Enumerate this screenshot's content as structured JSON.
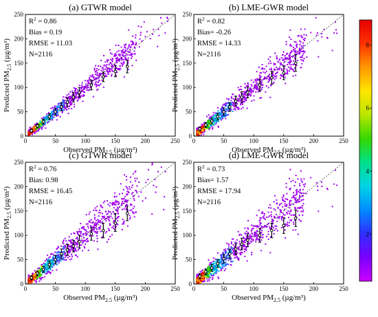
{
  "chart_data": [
    {
      "type": "scatter",
      "title": "(a) GTWR model",
      "xlabel": "Observed PM2.5 (µg/m³)",
      "ylabel": "Predicted PM2.5 (µg/m³)",
      "xlim": [
        0,
        250
      ],
      "ylim": [
        0,
        250
      ],
      "xticks": [
        0,
        50,
        100,
        150,
        200,
        250
      ],
      "yticks": [
        0,
        50,
        100,
        150,
        200,
        250
      ],
      "stats": [
        "R² = 0.86",
        "Bias = 0.19",
        "RMSE = 11.03",
        "N=2116"
      ],
      "reference_line": "1:1 dashed",
      "point_color_encoding": "point density (colorbar)",
      "error_bars": [
        {
          "x": 10,
          "y": 11,
          "lo": 8,
          "hi": 14
        },
        {
          "x": 20,
          "y": 21,
          "lo": 17,
          "hi": 25
        },
        {
          "x": 30,
          "y": 30,
          "lo": 25,
          "hi": 35
        },
        {
          "x": 40,
          "y": 40,
          "lo": 34,
          "hi": 46
        },
        {
          "x": 50,
          "y": 50,
          "lo": 43,
          "hi": 57
        },
        {
          "x": 60,
          "y": 60,
          "lo": 52,
          "hi": 68
        },
        {
          "x": 70,
          "y": 70,
          "lo": 61,
          "hi": 79
        },
        {
          "x": 80,
          "y": 80,
          "lo": 70,
          "hi": 90
        },
        {
          "x": 90,
          "y": 90,
          "lo": 80,
          "hi": 100
        },
        {
          "x": 110,
          "y": 105,
          "lo": 95,
          "hi": 115
        },
        {
          "x": 130,
          "y": 122,
          "lo": 112,
          "hi": 132
        },
        {
          "x": 150,
          "y": 133,
          "lo": 122,
          "hi": 145
        },
        {
          "x": 170,
          "y": 143,
          "lo": 130,
          "hi": 156
        }
      ]
    },
    {
      "type": "scatter",
      "title": "(b) LME-GWR model",
      "xlabel": "Observed PM2.5 (µg/m³)",
      "ylabel": "Predicted PM2.5 (µg/m³)",
      "xlim": [
        0,
        250
      ],
      "ylim": [
        0,
        250
      ],
      "xticks": [
        0,
        50,
        100,
        150,
        200,
        250
      ],
      "yticks": [
        0,
        50,
        100,
        150,
        200,
        250
      ],
      "stats": [
        "R² = 0.82",
        "Bias= -0.26",
        "RMSE = 14.33",
        "N=2116"
      ],
      "reference_line": "1:1 dashed",
      "point_color_encoding": "point density (colorbar)",
      "error_bars": [
        {
          "x": 10,
          "y": 15,
          "lo": 11,
          "hi": 19
        },
        {
          "x": 20,
          "y": 23,
          "lo": 18,
          "hi": 28
        },
        {
          "x": 30,
          "y": 31,
          "lo": 25,
          "hi": 37
        },
        {
          "x": 40,
          "y": 40,
          "lo": 33,
          "hi": 47
        },
        {
          "x": 50,
          "y": 50,
          "lo": 42,
          "hi": 58
        },
        {
          "x": 60,
          "y": 60,
          "lo": 51,
          "hi": 69
        },
        {
          "x": 70,
          "y": 72,
          "lo": 62,
          "hi": 82
        },
        {
          "x": 80,
          "y": 80,
          "lo": 69,
          "hi": 91
        },
        {
          "x": 90,
          "y": 90,
          "lo": 79,
          "hi": 101
        },
        {
          "x": 110,
          "y": 105,
          "lo": 93,
          "hi": 117
        },
        {
          "x": 130,
          "y": 120,
          "lo": 107,
          "hi": 133
        },
        {
          "x": 150,
          "y": 130,
          "lo": 116,
          "hi": 144
        },
        {
          "x": 170,
          "y": 150,
          "lo": 133,
          "hi": 167
        }
      ]
    },
    {
      "type": "scatter",
      "title": "(c) GTWR model",
      "xlabel": "Observed PM2.5 (µg/m³)",
      "ylabel": "Predicted PM2.5 (µg/m³)",
      "xlim": [
        0,
        250
      ],
      "ylim": [
        0,
        250
      ],
      "xticks": [
        0,
        50,
        100,
        150,
        200,
        250
      ],
      "yticks": [
        0,
        50,
        100,
        150,
        200,
        250
      ],
      "stats": [
        "R² = 0.76",
        "Bias: 0.98",
        "RMSE = 16.45",
        "N=2116"
      ],
      "reference_line": "1:1 dashed",
      "point_color_encoding": "point density (colorbar)",
      "error_bars": [
        {
          "x": 10,
          "y": 13,
          "lo": 9,
          "hi": 17
        },
        {
          "x": 20,
          "y": 22,
          "lo": 17,
          "hi": 27
        },
        {
          "x": 30,
          "y": 30,
          "lo": 24,
          "hi": 36
        },
        {
          "x": 40,
          "y": 40,
          "lo": 33,
          "hi": 47
        },
        {
          "x": 50,
          "y": 50,
          "lo": 41,
          "hi": 59
        },
        {
          "x": 60,
          "y": 62,
          "lo": 52,
          "hi": 72
        },
        {
          "x": 70,
          "y": 70,
          "lo": 59,
          "hi": 81
        },
        {
          "x": 80,
          "y": 78,
          "lo": 66,
          "hi": 90
        },
        {
          "x": 90,
          "y": 87,
          "lo": 74,
          "hi": 100
        },
        {
          "x": 110,
          "y": 103,
          "lo": 90,
          "hi": 116
        },
        {
          "x": 130,
          "y": 110,
          "lo": 95,
          "hi": 125
        },
        {
          "x": 150,
          "y": 125,
          "lo": 108,
          "hi": 145
        },
        {
          "x": 170,
          "y": 145,
          "lo": 130,
          "hi": 160
        }
      ]
    },
    {
      "type": "scatter",
      "title": "(d) LME-GWR model",
      "xlabel": "Observed PM2.5 (µg/m³)",
      "ylabel": "Predicted PM2.5 (µg/m³)",
      "xlim": [
        0,
        250
      ],
      "ylim": [
        0,
        250
      ],
      "xticks": [
        0,
        50,
        100,
        150,
        200,
        250
      ],
      "yticks": [
        0,
        50,
        100,
        150,
        200,
        250
      ],
      "stats": [
        "R² = 0.73",
        "Bias= 1.57",
        "RMSE = 17.94",
        "N=2116"
      ],
      "reference_line": "1:1 dashed",
      "point_color_encoding": "point density (colorbar)",
      "error_bars": [
        {
          "x": 10,
          "y": 16,
          "lo": 11,
          "hi": 21
        },
        {
          "x": 20,
          "y": 25,
          "lo": 19,
          "hi": 31
        },
        {
          "x": 30,
          "y": 33,
          "lo": 26,
          "hi": 40
        },
        {
          "x": 40,
          "y": 42,
          "lo": 34,
          "hi": 50
        },
        {
          "x": 50,
          "y": 52,
          "lo": 43,
          "hi": 61
        },
        {
          "x": 60,
          "y": 62,
          "lo": 52,
          "hi": 72
        },
        {
          "x": 70,
          "y": 72,
          "lo": 61,
          "hi": 83
        },
        {
          "x": 80,
          "y": 82,
          "lo": 70,
          "hi": 94
        },
        {
          "x": 90,
          "y": 90,
          "lo": 77,
          "hi": 103
        },
        {
          "x": 110,
          "y": 100,
          "lo": 86,
          "hi": 114
        },
        {
          "x": 130,
          "y": 110,
          "lo": 95,
          "hi": 125
        },
        {
          "x": 150,
          "y": 120,
          "lo": 104,
          "hi": 136
        },
        {
          "x": 170,
          "y": 135,
          "lo": 118,
          "hi": 152
        }
      ]
    }
  ],
  "colorbar": {
    "ticks": [
      2,
      4,
      6,
      8
    ],
    "range": [
      0.5,
      8.8
    ],
    "colors": [
      "#cc00ff",
      "#7a00ff",
      "#2f2fff",
      "#008cff",
      "#00d4e6",
      "#00e08a",
      "#34d800",
      "#b8e600",
      "#ffe600",
      "#ff9900",
      "#ff3300",
      "#e60000"
    ]
  },
  "point_colors": {
    "low": "#a000f0",
    "mid": "#0090ff",
    "mid2": "#00d4c0",
    "high": "#20c000",
    "peak": "#e60000",
    "errorbar": "#000000"
  }
}
